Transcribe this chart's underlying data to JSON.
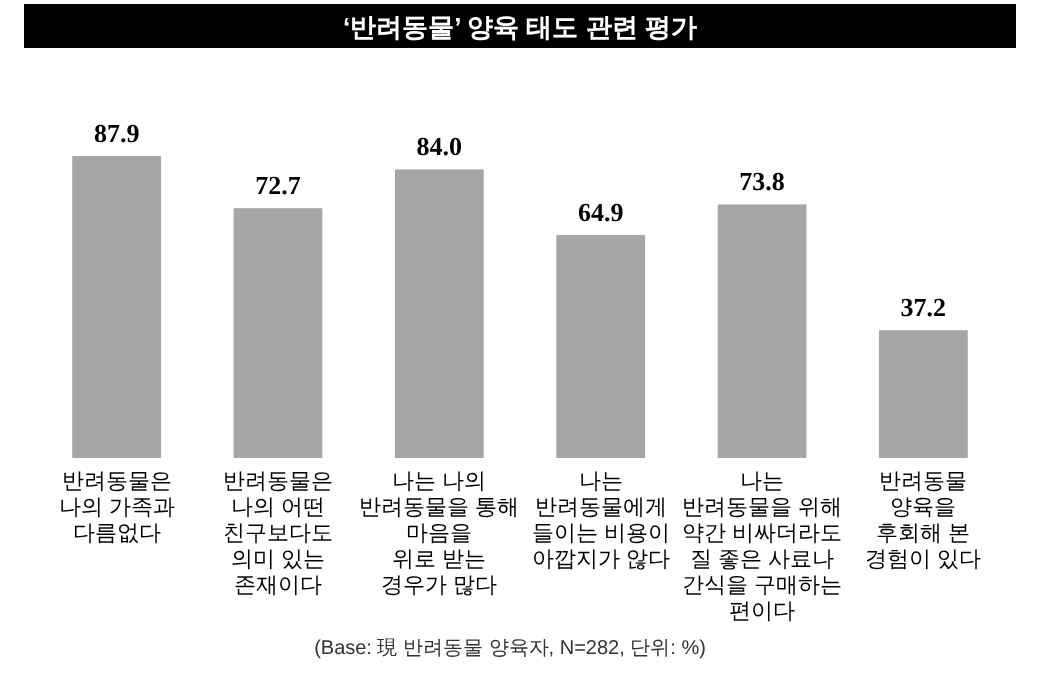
{
  "chart_data": {
    "type": "bar",
    "title": "‘반려동물’ 양육 태도 관련 평가",
    "categories": [
      "반려동물은\n나의 가족과\n다름없다",
      "반려동물은\n나의 어떤\n친구보다도\n의미 있는\n존재이다",
      "나는 나의\n반려동물을 통해\n마음을\n위로 받는\n경우가 많다",
      "나는\n반려동물에게\n들이는 비용이\n아깝지가 않다",
      "나는\n반려동물을 위해\n약간 비싸더라도\n질 좋은 사료나\n간식을 구매하는\n편이다",
      "반려동물\n양육을\n후회해 본\n경험이 있다"
    ],
    "values": [
      87.9,
      72.7,
      84.0,
      64.9,
      73.8,
      37.2
    ],
    "color": "#a6a6a6",
    "value_labels": [
      "87.9",
      "72.7",
      "84.0",
      "64.9",
      "73.8",
      "37.2"
    ],
    "annotations": [
      "(Base: 現 반려동물 양육자, N=282, 단위: %)"
    ]
  }
}
